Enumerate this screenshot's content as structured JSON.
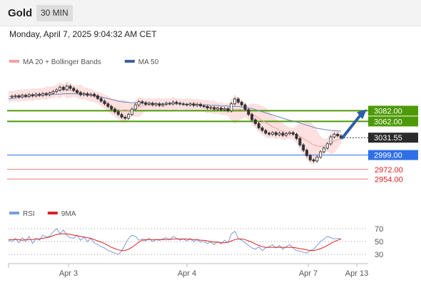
{
  "header": {
    "title": "Gold",
    "timeframe": "30 MIN"
  },
  "datetime": "Monday, April 7, 2025 9:04:32 AM CET",
  "legend_main": [
    {
      "name": "MA 20 + Bollinger Bands",
      "color": "#f4a0a0"
    },
    {
      "name": "MA 50",
      "color": "#3a5fa0"
    }
  ],
  "legend_rsi": [
    {
      "name": "RSI",
      "color": "#7b9be0"
    },
    {
      "name": "9MA",
      "color": "#e02020"
    }
  ],
  "chart_data": {
    "type": "candlestick",
    "x_ticks": [
      "Apr 3",
      "Apr 4",
      "Apr 7",
      "Apr 13"
    ],
    "y_range": [
      2925,
      3140
    ],
    "price_levels": [
      {
        "label": "3082.00",
        "value": 3082,
        "style": "resistance",
        "color": "#4d9a06"
      },
      {
        "label": "3062.00",
        "value": 3062,
        "style": "resistance",
        "color": "#4d9a06"
      },
      {
        "label": "3031.55",
        "value": 3031.55,
        "style": "current",
        "color": "#2b2b2b"
      },
      {
        "label": "2999.00",
        "value": 2999,
        "style": "pivot",
        "color": "#2f6fe8"
      },
      {
        "label": "2972.00",
        "value": 2972,
        "style": "support",
        "color": "#e02020"
      },
      {
        "label": "2954.00",
        "value": 2954,
        "style": "support",
        "color": "#e02020"
      }
    ],
    "close_path": [
      3108,
      3109,
      3110,
      3108,
      3111,
      3109,
      3112,
      3110,
      3113,
      3111,
      3114,
      3112,
      3115,
      3118,
      3121,
      3126,
      3122,
      3128,
      3124,
      3120,
      3116,
      3112,
      3114,
      3111,
      3113,
      3110,
      3105,
      3100,
      3095,
      3090,
      3085,
      3080,
      3075,
      3070,
      3068,
      3075,
      3085,
      3093,
      3099,
      3097,
      3094,
      3096,
      3093,
      3095,
      3092,
      3094,
      3096,
      3095,
      3098,
      3096,
      3095,
      3094,
      3093,
      3095,
      3092,
      3094,
      3091,
      3090,
      3087,
      3088,
      3085,
      3087,
      3084,
      3086,
      3082,
      3095,
      3104,
      3098,
      3093,
      3084,
      3075,
      3065,
      3058,
      3050,
      3045,
      3040,
      3038,
      3041,
      3037,
      3040,
      3036,
      3039,
      3041,
      3038,
      3030,
      3018,
      3008,
      2998,
      2990,
      2988,
      2995,
      3005,
      3012,
      3020,
      3033,
      3038,
      3035,
      3031
    ],
    "ma20_path": [
      3109,
      3109,
      3110,
      3110,
      3111,
      3111,
      3112,
      3112,
      3113,
      3113,
      3114,
      3115,
      3116,
      3117,
      3119,
      3120,
      3121,
      3121,
      3120,
      3119,
      3118,
      3117,
      3115,
      3113,
      3111,
      3109,
      3106,
      3103,
      3099,
      3095,
      3091,
      3087,
      3084,
      3082,
      3081,
      3082,
      3084,
      3086,
      3089,
      3091,
      3093,
      3094,
      3094,
      3094,
      3094,
      3094,
      3094,
      3095,
      3095,
      3095,
      3095,
      3094,
      3094,
      3094,
      3093,
      3093,
      3092,
      3091,
      3090,
      3089,
      3088,
      3087,
      3086,
      3085,
      3084,
      3084,
      3085,
      3085,
      3084,
      3082,
      3079,
      3076,
      3072,
      3068,
      3064,
      3060,
      3056,
      3052,
      3049,
      3046,
      3043,
      3041,
      3040,
      3039,
      3037,
      3034,
      3030,
      3026,
      3022,
      3018,
      3016,
      3015,
      3016,
      3018,
      3021,
      3025,
      3028,
      3031
    ],
    "ma50_path": [
      3104,
      3105,
      3106,
      3107,
      3108,
      3108,
      3109,
      3110,
      3110,
      3111,
      3111,
      3112,
      3112,
      3113,
      3113,
      3113,
      3114,
      3114,
      3114,
      3114,
      3114,
      3113,
      3113,
      3112,
      3111,
      3110,
      3109,
      3108,
      3106,
      3105,
      3103,
      3102,
      3100,
      3099,
      3098,
      3098,
      3097,
      3097,
      3097,
      3096,
      3096,
      3096,
      3096,
      3095,
      3095,
      3095,
      3095,
      3095,
      3095,
      3095,
      3095,
      3094,
      3094,
      3094,
      3094,
      3094,
      3093,
      3093,
      3093,
      3092,
      3092,
      3092,
      3091,
      3091,
      3091,
      3090,
      3090,
      3090,
      3089,
      3088,
      3087,
      3086,
      3084,
      3082,
      3080,
      3078,
      3076,
      3074,
      3072,
      3070,
      3068,
      3066,
      3064,
      3063,
      3061,
      3059,
      3057,
      3055,
      3053,
      3051,
      3049,
      3048,
      3047,
      3046,
      3045,
      3045,
      3044,
      3044
    ],
    "forecast_arrow": {
      "from": 3031.55,
      "to": 3082
    },
    "rsi": {
      "levels": [
        "70",
        "50",
        "30"
      ],
      "level_values": [
        70,
        50,
        30
      ],
      "y_range": [
        20,
        80
      ],
      "rsi_path": [
        52,
        50,
        55,
        48,
        56,
        50,
        58,
        47,
        55,
        52,
        60,
        57,
        58,
        65,
        70,
        62,
        68,
        60,
        56,
        55,
        60,
        52,
        57,
        50,
        55,
        48,
        45,
        42,
        40,
        36,
        34,
        32,
        30,
        35,
        45,
        55,
        60,
        58,
        52,
        54,
        51,
        55,
        50,
        53,
        52,
        54,
        56,
        53,
        58,
        55,
        52,
        54,
        51,
        55,
        50,
        53,
        49,
        50,
        47,
        49,
        45,
        50,
        46,
        52,
        48,
        62,
        66,
        55,
        52,
        48,
        44,
        40,
        38,
        42,
        36,
        40,
        42,
        45,
        40,
        44,
        38,
        42,
        45,
        40,
        36,
        35,
        33,
        32,
        36,
        38,
        44,
        50,
        54,
        58,
        56,
        54,
        55,
        54
      ],
      "ma9_path": [
        53,
        53,
        53,
        53,
        52,
        53,
        53,
        53,
        54,
        54,
        55,
        56,
        57,
        59,
        61,
        62,
        62,
        62,
        61,
        60,
        59,
        58,
        57,
        56,
        55,
        53,
        51,
        49,
        47,
        44,
        41,
        39,
        37,
        36,
        36,
        38,
        41,
        45,
        49,
        52,
        53,
        53,
        53,
        53,
        53,
        53,
        53,
        53,
        54,
        54,
        54,
        54,
        54,
        53,
        53,
        53,
        52,
        52,
        51,
        50,
        49,
        49,
        48,
        48,
        49,
        51,
        53,
        54,
        54,
        53,
        51,
        49,
        46,
        44,
        42,
        41,
        41,
        41,
        41,
        41,
        41,
        41,
        41,
        41,
        40,
        39,
        38,
        37,
        36,
        36,
        37,
        39,
        41,
        44,
        47,
        50,
        52,
        54
      ]
    }
  }
}
